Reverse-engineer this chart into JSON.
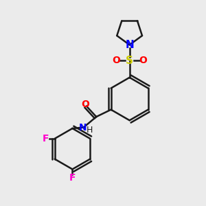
{
  "bg_color": "#ebebeb",
  "bond_color": "#1a1a1a",
  "N_color": "#0000ff",
  "O_color": "#ff0000",
  "S_color": "#cccc00",
  "F_color": "#ff00cc",
  "line_width": 1.8,
  "figsize": [
    3.0,
    3.0
  ],
  "dpi": 100,
  "xlim": [
    0,
    10
  ],
  "ylim": [
    0,
    10
  ]
}
